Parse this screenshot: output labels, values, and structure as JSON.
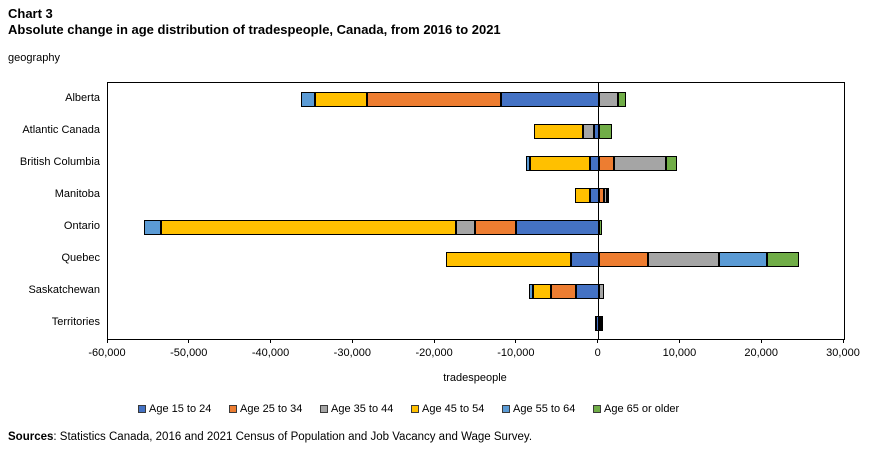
{
  "title": {
    "line1": "Chart 3",
    "line2": "Absolute change in age distribution of tradespeople, Canada, from 2016 to 2021"
  },
  "y_axis_label": "geography",
  "x_axis_label": "tradespeople",
  "sources": {
    "label": "Sources",
    "text": ": Statistics Canada, 2016 and 2021 Census of Population and Job Vacancy and Wage Survey."
  },
  "chart_data": {
    "type": "bar",
    "orientation": "horizontal",
    "stacked": true,
    "title": "Absolute change in age distribution of tradespeople, Canada, from 2016 to 2021",
    "xlabel": "tradespeople",
    "ylabel": "geography",
    "xlim": [
      -60000,
      30000
    ],
    "grid": false,
    "zero_line": true,
    "legend_position": "bottom",
    "categories": [
      "Alberta",
      "Atlantic Canada",
      "British Columbia",
      "Manitoba",
      "Ontario",
      "Quebec",
      "Saskatchewan",
      "Territories"
    ],
    "xticks": [
      -60000,
      -50000,
      -40000,
      -30000,
      -20000,
      -10000,
      0,
      10000,
      20000,
      30000
    ],
    "xtick_labels": [
      "-60,000",
      "-50,000",
      "-40,000",
      "-30,000",
      "-20,000",
      "-10,000",
      "0",
      "10,000",
      "20,000",
      "30,000"
    ],
    "series": [
      {
        "name": "Age 15 to 24",
        "color": "#4472C4",
        "pattern": "solid",
        "values": [
          -12000,
          -600,
          -1100,
          -1000,
          -10100,
          -3400,
          -2800,
          -300
        ]
      },
      {
        "name": "Age 25 to 34",
        "color": "#ED7D31",
        "pattern": "solid",
        "values": [
          -16300,
          0,
          1900,
          600,
          -5000,
          6000,
          -3000,
          100
        ]
      },
      {
        "name": "Age 35 to 44",
        "color": "#A5A5A5",
        "pattern": "dots",
        "values": [
          2400,
          -1300,
          6300,
          400,
          -2400,
          8700,
          700,
          150
        ]
      },
      {
        "name": "Age 45 to 54",
        "color": "#FFC000",
        "pattern": "solid",
        "values": [
          -6400,
          -6000,
          -7300,
          -1900,
          -36000,
          -15300,
          -2200,
          -100
        ]
      },
      {
        "name": "Age 55 to 64",
        "color": "#5B9BD5",
        "pattern": "solid",
        "values": [
          -1700,
          0,
          -500,
          0,
          -2100,
          5900,
          -500,
          0
        ]
      },
      {
        "name": "Age 65 or older",
        "color": "#70AD47",
        "pattern": "solid",
        "values": [
          1000,
          1600,
          1400,
          250,
          400,
          3900,
          0,
          150
        ]
      }
    ]
  }
}
